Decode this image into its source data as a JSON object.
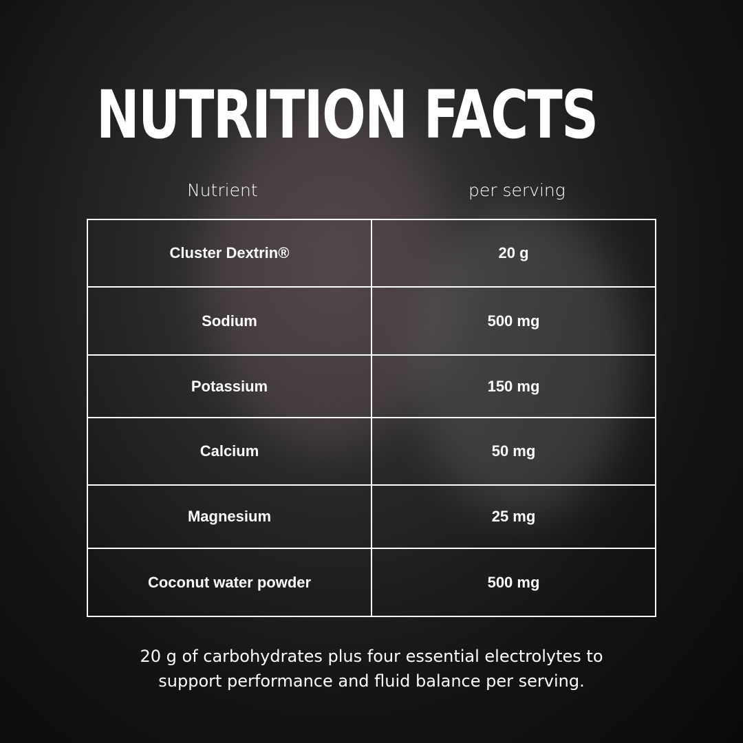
{
  "title": "NUTRITION FACTS",
  "columns": {
    "nutrient": "Nutrient",
    "per_serving": "per serving"
  },
  "rows": [
    {
      "nutrient": "Cluster Dextrin®",
      "amount": "20 g"
    },
    {
      "nutrient": "Sodium",
      "amount": "500 mg"
    },
    {
      "nutrient": "Potassium",
      "amount": "150 mg"
    },
    {
      "nutrient": "Calcium",
      "amount": "50 mg"
    },
    {
      "nutrient": "Magnesium",
      "amount": "25 mg"
    },
    {
      "nutrient": "Coconut water powder",
      "amount": "500 mg"
    }
  ],
  "footer": {
    "line1": "20 g of carbohydrates plus four essential electrolytes to",
    "line2": "support performance and fluid balance per serving."
  }
}
